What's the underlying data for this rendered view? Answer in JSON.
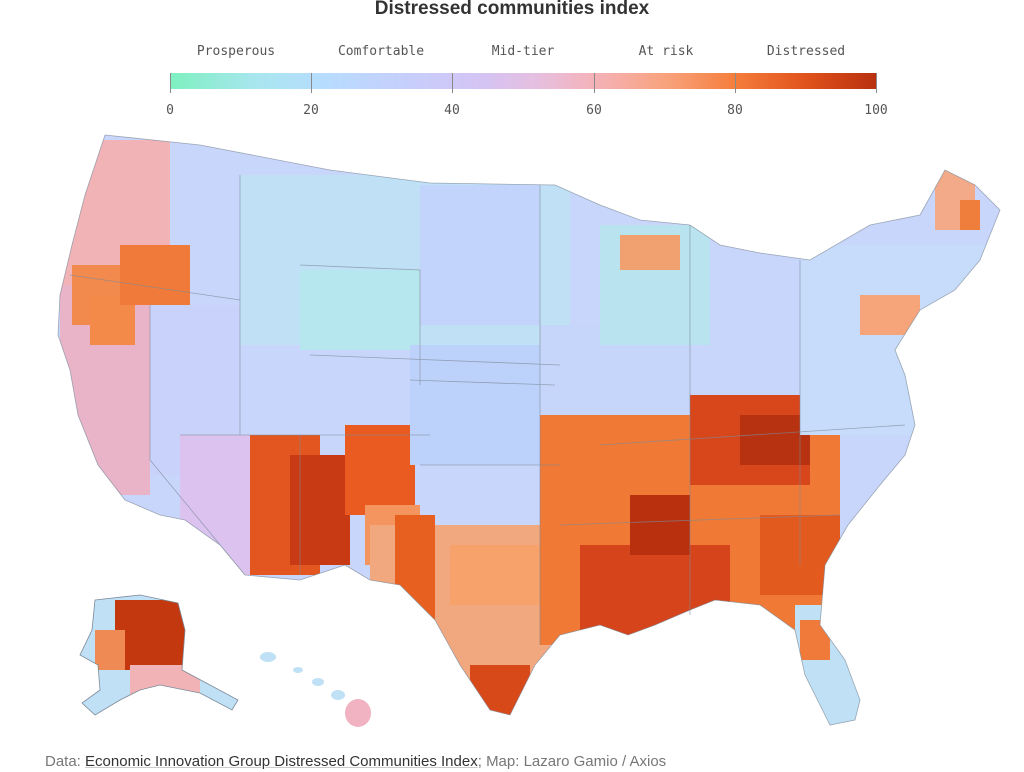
{
  "title": "Distressed communities index",
  "legend": {
    "categories": [
      "Prosperous",
      "Comfortable",
      "Mid-tier",
      "At risk",
      "Distressed"
    ],
    "ticks": [
      "0",
      "20",
      "40",
      "60",
      "80",
      "100"
    ],
    "scale_min": 0,
    "scale_max": 100,
    "colors": [
      "#7ef0c0",
      "#b7dcff",
      "#d4c4f4",
      "#f4b2b8",
      "#f57d3b",
      "#b8300f"
    ]
  },
  "map": {
    "region": "United States counties",
    "high_distress_colors": [
      "#e0521c",
      "#b8300f"
    ],
    "state_border_color": "#7d8a99"
  },
  "footer": {
    "data_label": "Data:",
    "source_link": "Economic Innovation Group Distressed Communities Index",
    "separator": ";",
    "map_label": "Map:",
    "credit": "Lazaro Gamio / Axios"
  }
}
